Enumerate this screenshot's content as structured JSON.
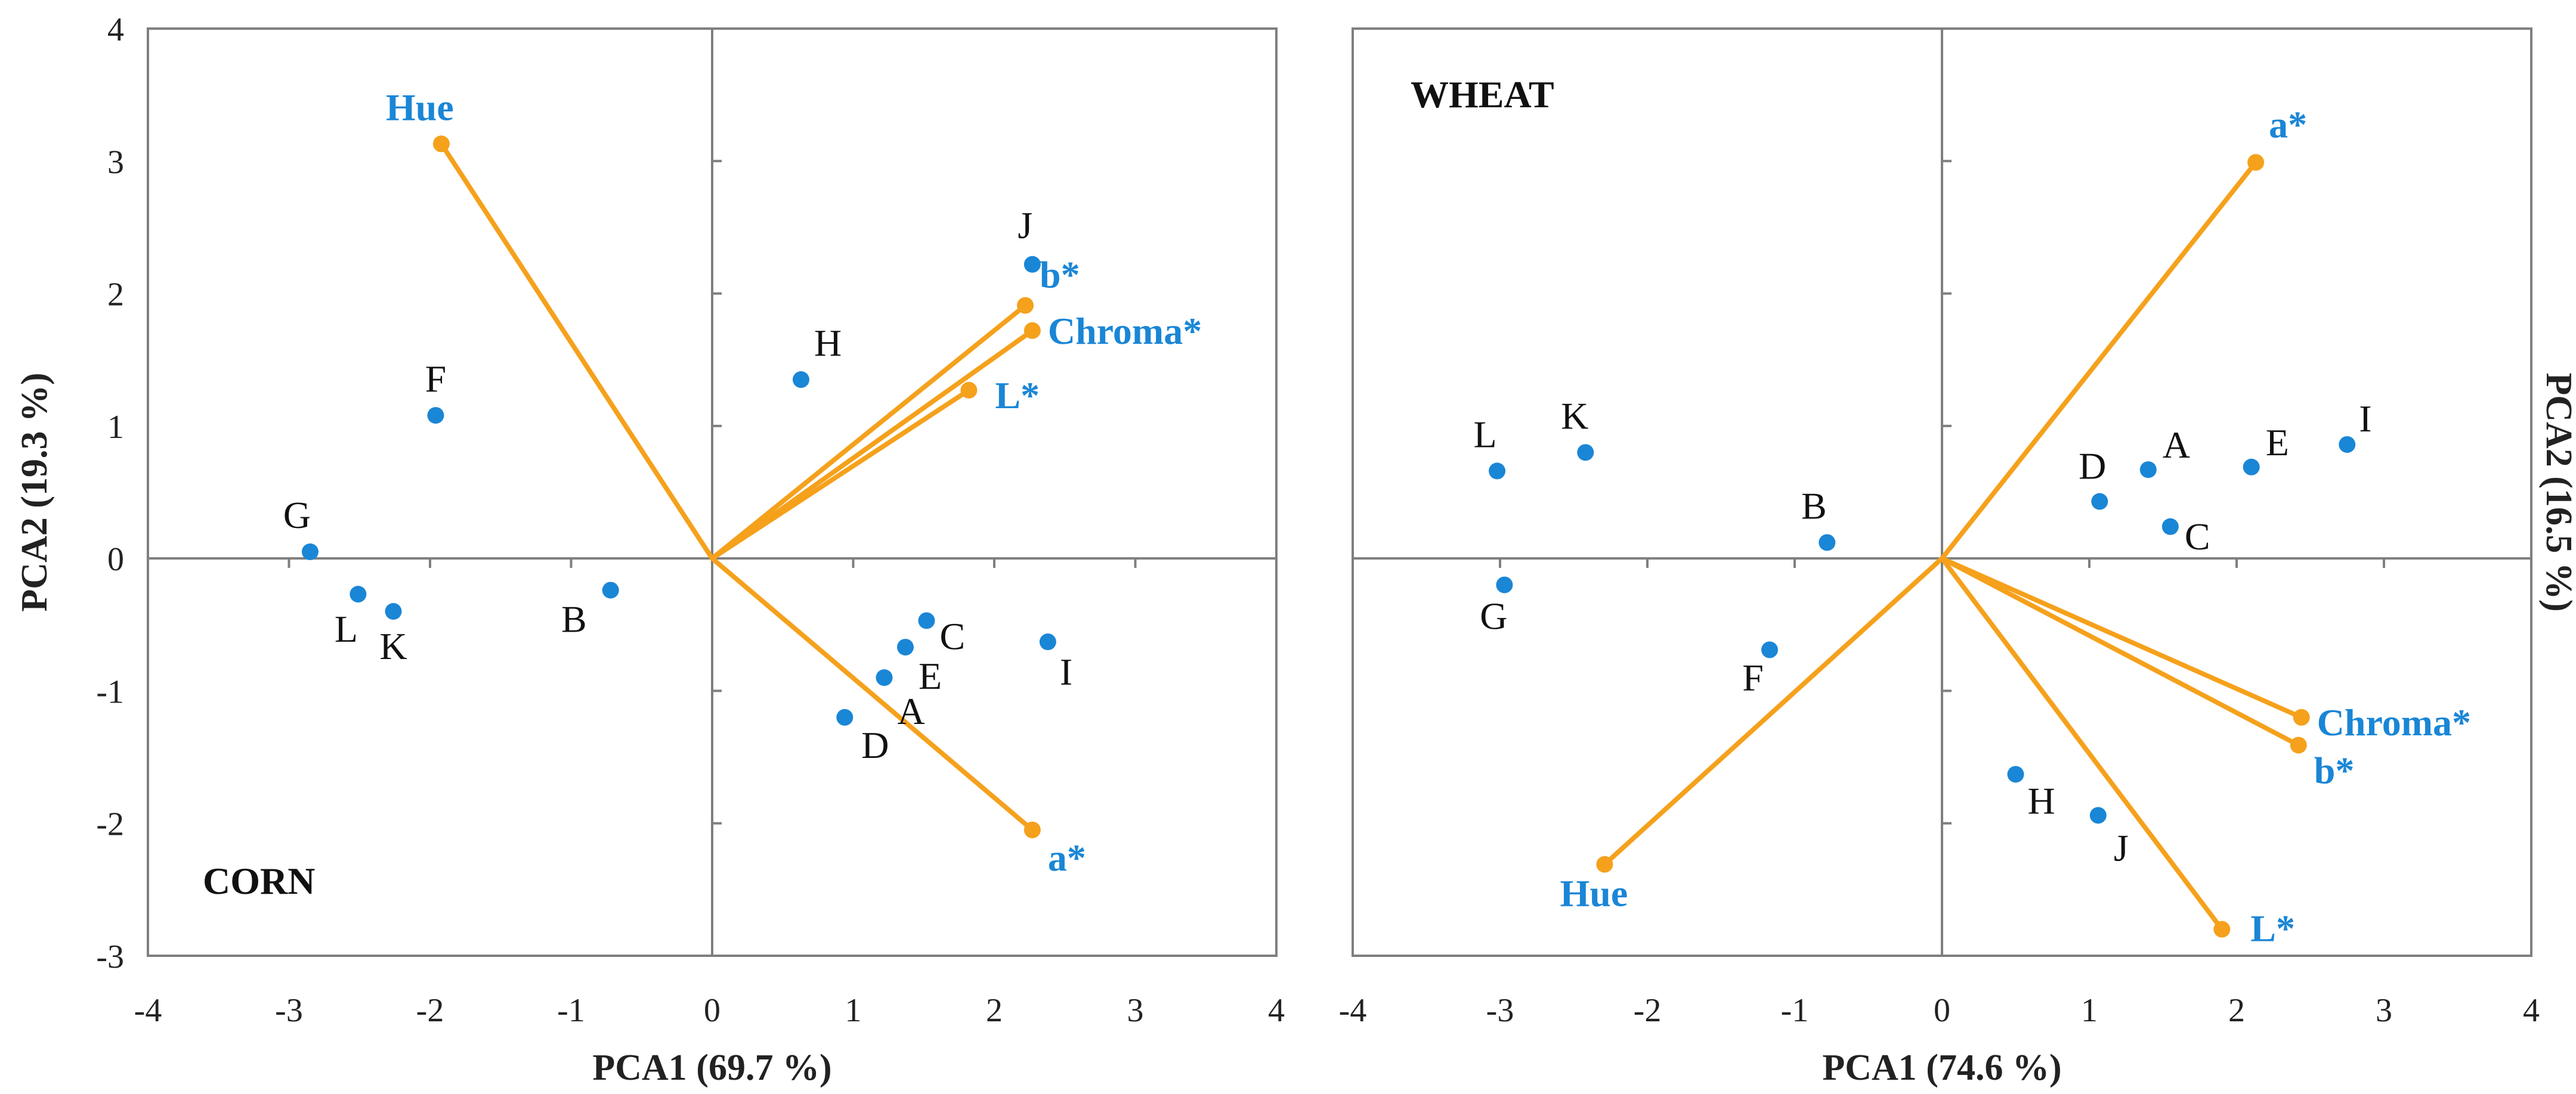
{
  "chart_data": [
    {
      "type": "scatter",
      "panel_label": "CORN",
      "xlabel": "PCA1 (69.7 %)",
      "ylabel": "PCA2 (19.3 %)",
      "ylabel_side": "left",
      "xlim": [
        -4,
        4
      ],
      "ylim": [
        -3,
        4
      ],
      "xticks": [
        "-4",
        "-3",
        "-2",
        "-1",
        "0",
        "1",
        "2",
        "3",
        "4"
      ],
      "yticks": [
        "-3",
        "-2",
        "-1",
        "0",
        "1",
        "2",
        "3",
        "4"
      ],
      "grid": false,
      "point_color": "#1a86d6",
      "vector_color": "#f5a11c",
      "points": [
        {
          "label": "A",
          "x": 1.22,
          "y": -0.9
        },
        {
          "label": "B",
          "x": -0.72,
          "y": -0.24
        },
        {
          "label": "C",
          "x": 1.52,
          "y": -0.47
        },
        {
          "label": "D",
          "x": 0.94,
          "y": -1.2
        },
        {
          "label": "E",
          "x": 1.37,
          "y": -0.67
        },
        {
          "label": "F",
          "x": -1.96,
          "y": 1.08
        },
        {
          "label": "G",
          "x": -2.85,
          "y": 0.05
        },
        {
          "label": "H",
          "x": 0.63,
          "y": 1.35
        },
        {
          "label": "I",
          "x": 2.38,
          "y": -0.63
        },
        {
          "label": "J",
          "x": 2.27,
          "y": 2.22
        },
        {
          "label": "K",
          "x": -2.26,
          "y": -0.4
        },
        {
          "label": "L",
          "x": -2.51,
          "y": -0.27
        }
      ],
      "vectors": [
        {
          "label": "Hue",
          "x": -1.92,
          "y": 3.13
        },
        {
          "label": "b*",
          "x": 2.22,
          "y": 1.91
        },
        {
          "label": "Chroma*",
          "x": 2.27,
          "y": 1.72
        },
        {
          "label": "L*",
          "x": 1.82,
          "y": 1.27
        },
        {
          "label": "a*",
          "x": 2.27,
          "y": -2.05
        }
      ]
    },
    {
      "type": "scatter",
      "panel_label": "WHEAT",
      "xlabel": "PCA1 (74.6 %)",
      "ylabel": "PCA2 (16.5 %)",
      "ylabel_side": "right",
      "xlim": [
        -4,
        4
      ],
      "ylim": [
        -3,
        4
      ],
      "xticks": [
        "-4",
        "-3",
        "-2",
        "-1",
        "0",
        "1",
        "2",
        "3",
        "4"
      ],
      "yticks": [],
      "grid": false,
      "point_color": "#1a86d6",
      "vector_color": "#f5a11c",
      "points": [
        {
          "label": "A",
          "x": 1.4,
          "y": 0.67
        },
        {
          "label": "B",
          "x": -0.78,
          "y": 0.12
        },
        {
          "label": "C",
          "x": 1.55,
          "y": 0.24
        },
        {
          "label": "D",
          "x": 1.07,
          "y": 0.43
        },
        {
          "label": "E",
          "x": 2.1,
          "y": 0.69
        },
        {
          "label": "F",
          "x": -1.17,
          "y": -0.69
        },
        {
          "label": "G",
          "x": -2.97,
          "y": -0.2
        },
        {
          "label": "H",
          "x": 0.5,
          "y": -1.63
        },
        {
          "label": "I",
          "x": 2.75,
          "y": 0.86
        },
        {
          "label": "J",
          "x": 1.06,
          "y": -1.94
        },
        {
          "label": "K",
          "x": -2.42,
          "y": 0.8
        },
        {
          "label": "L",
          "x": -3.02,
          "y": 0.66
        }
      ],
      "vectors": [
        {
          "label": "a*",
          "x": 2.13,
          "y": 2.99
        },
        {
          "label": "Chroma*",
          "x": 2.44,
          "y": -1.2
        },
        {
          "label": "b*",
          "x": 2.42,
          "y": -1.41
        },
        {
          "label": "L*",
          "x": 1.9,
          "y": -2.8
        },
        {
          "label": "Hue",
          "x": -2.29,
          "y": -2.31
        }
      ]
    }
  ]
}
